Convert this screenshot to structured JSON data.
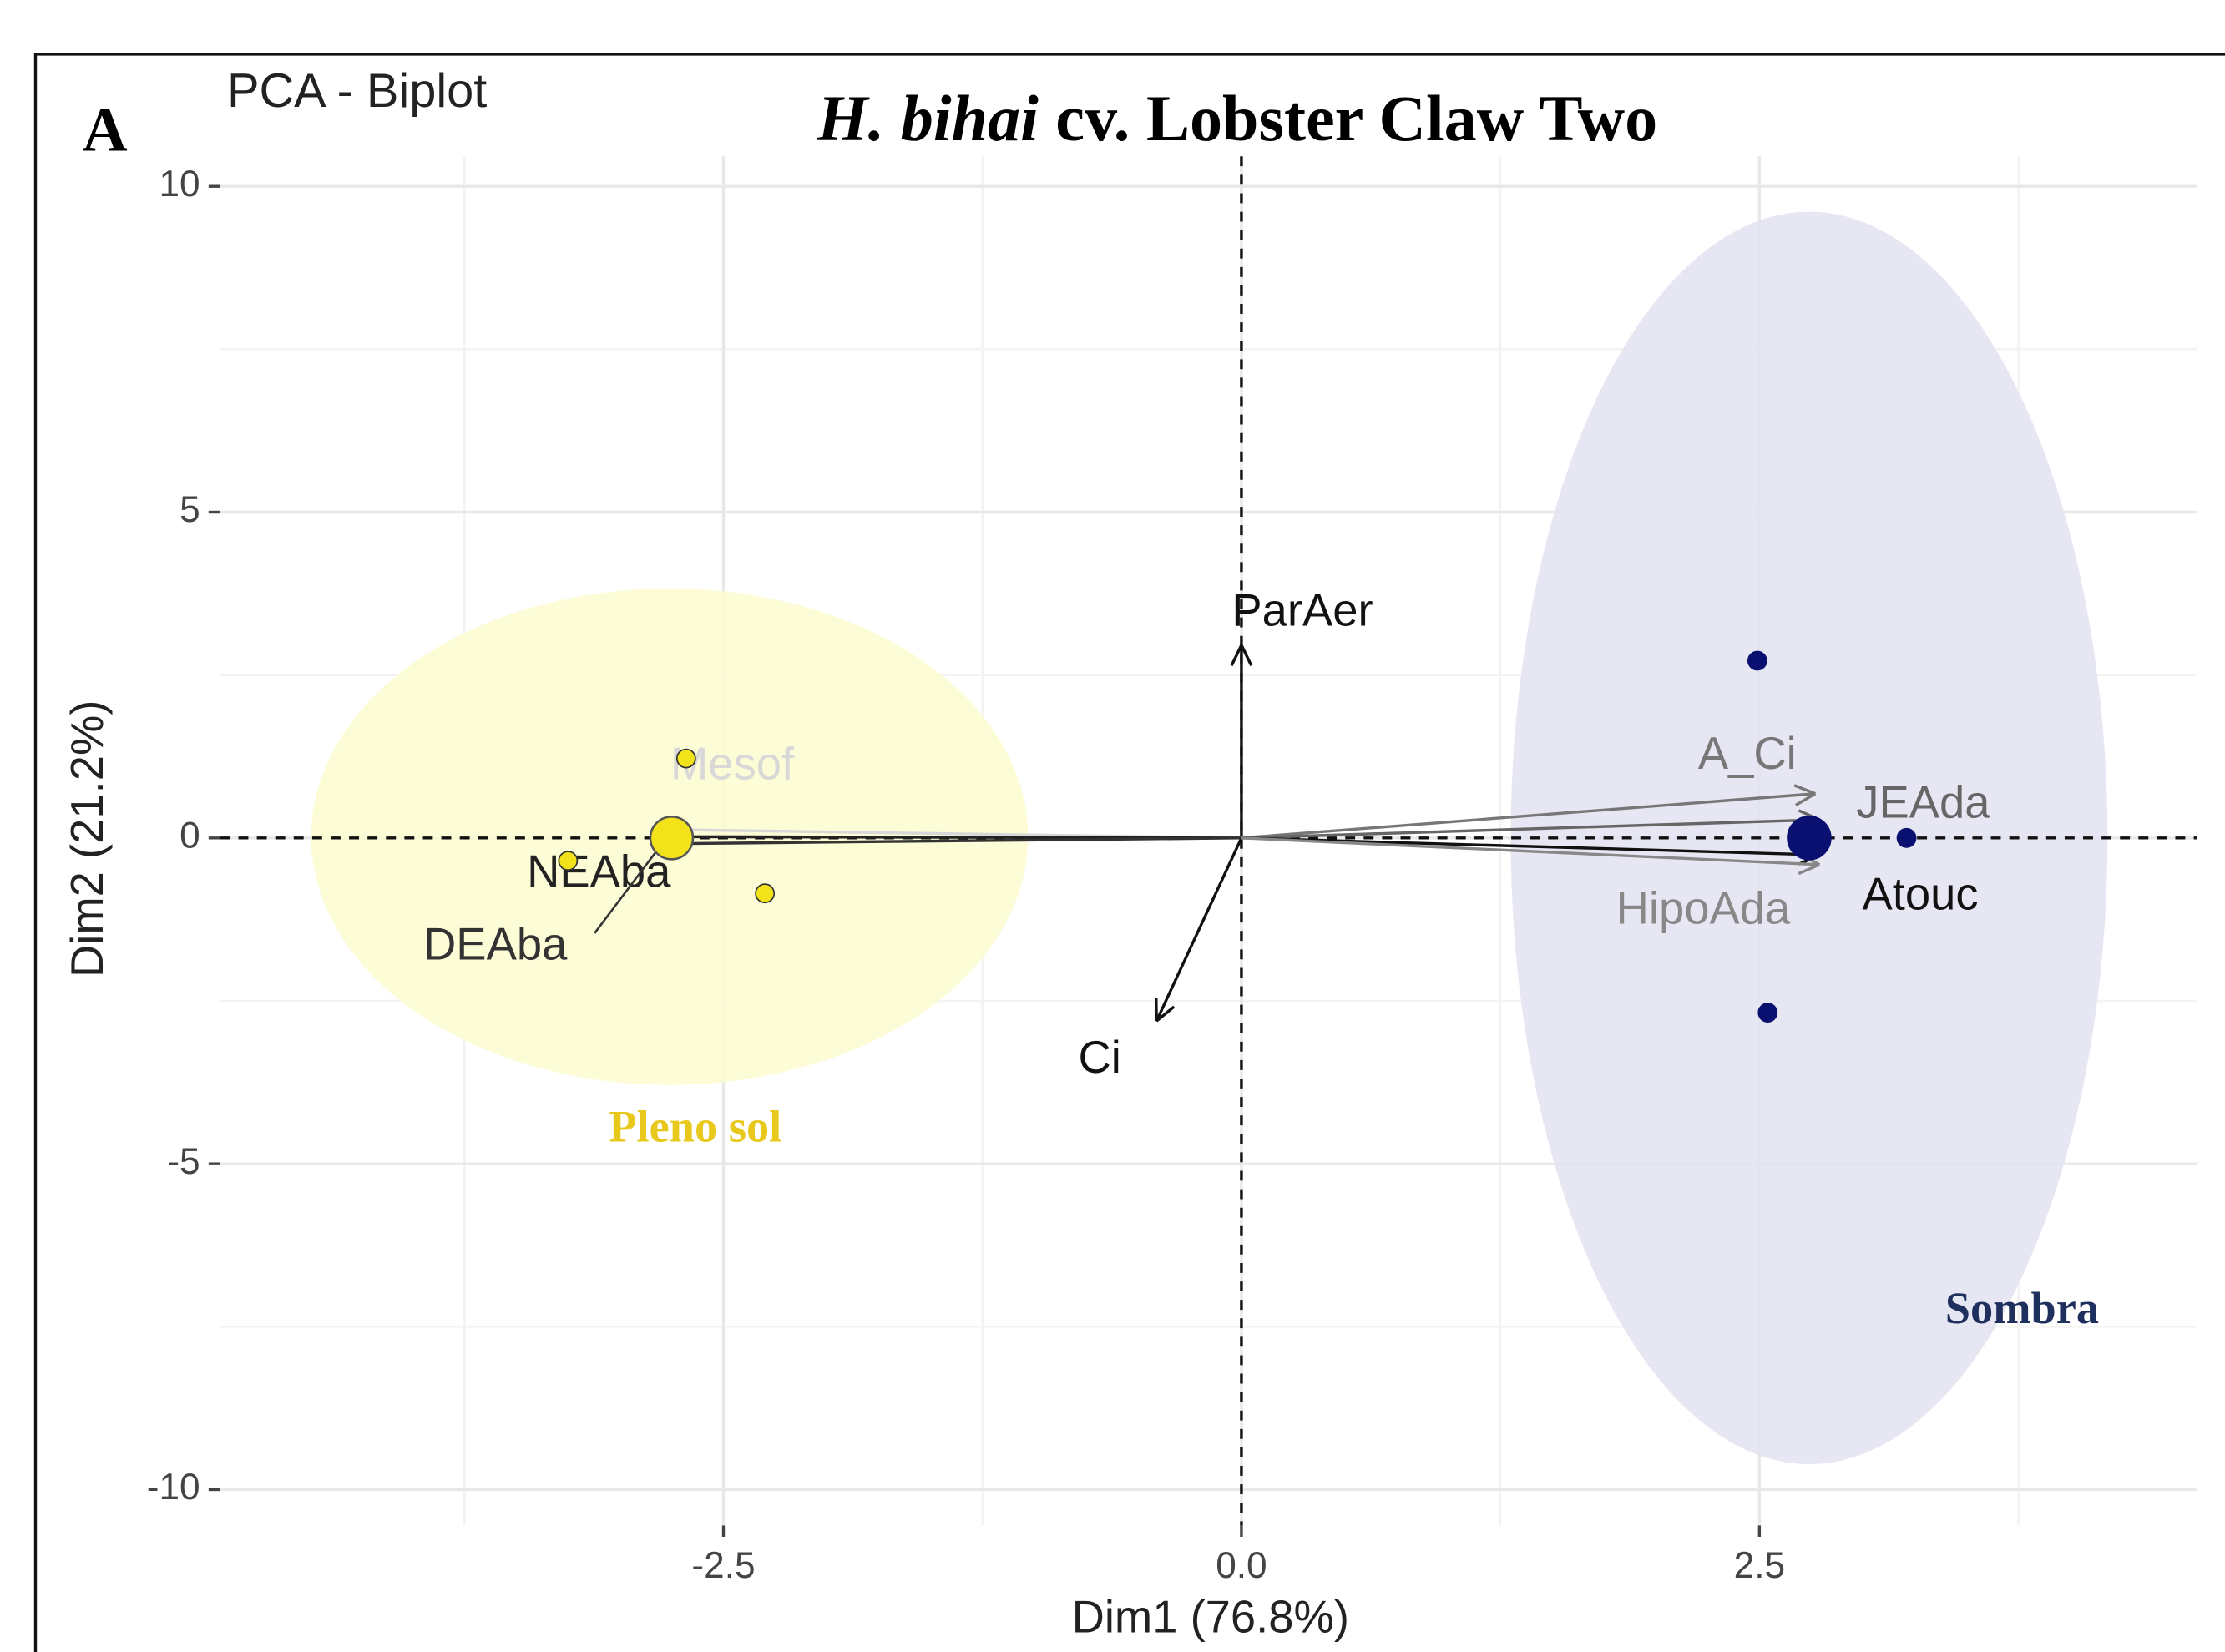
{
  "chart_data": {
    "type": "biplot",
    "panel_label": "A",
    "subtitle": "PCA - Biplot",
    "title_parts": [
      "H. bihai",
      "cv. Lobster Claw Two"
    ],
    "xlabel": "Dim1 (76.8%)",
    "ylabel": "Dim2 (21.2%)",
    "xlim": [
      -4.93,
      4.61
    ],
    "ylim": [
      -10.55,
      10.46
    ],
    "xticks": [
      -2.5,
      {
        "value": 0,
        "label": "0.0"
      },
      2.5
    ],
    "yticks": [
      10,
      5,
      0,
      -5,
      -10
    ],
    "minor_xticks": [
      -3.75,
      -1.25,
      1.25,
      3.75
    ],
    "minor_yticks": [
      7.5,
      2.5,
      -2.5,
      -7.5
    ],
    "grid": true,
    "series": [
      {
        "name": "Pleno sol",
        "color": "#f2e21a",
        "label_color": "#e8c81a",
        "ellipse_color": "#fbfbd0",
        "x": [
          -2.68,
          -3.25,
          -2.3
        ],
        "y": [
          1.22,
          -0.35,
          -0.85
        ],
        "centroid": [
          -2.75,
          0
        ],
        "ellipse": {
          "cx": -2.76,
          "cy": 0.02,
          "rx": 1.73,
          "ry": 3.81
        }
      },
      {
        "name": "Sombra",
        "color": "#0a1070",
        "label_color": "#1f2f5e",
        "ellipse_color": "#e2e3f1",
        "x": [
          2.49,
          3.21,
          2.54
        ],
        "y": [
          2.72,
          0,
          -2.68
        ],
        "centroid": [
          2.74,
          0
        ],
        "ellipse": {
          "cx": 2.74,
          "cy": 0,
          "rx": 1.44,
          "ry": 9.61
        }
      }
    ],
    "variables": [
      {
        "name": "ParAer",
        "x": 0,
        "y": 2.96,
        "color": "#111111"
      },
      {
        "name": "Ci",
        "x": -0.41,
        "y": -2.81,
        "color": "#111111"
      },
      {
        "name": "A_Ci",
        "x": 2.77,
        "y": 0.68,
        "color": "#777777"
      },
      {
        "name": "JEAda",
        "x": 2.79,
        "y": 0.28,
        "color": "#666666"
      },
      {
        "name": "Atouc",
        "x": 2.79,
        "y": -0.26,
        "color": "#111111"
      },
      {
        "name": "HipoAda",
        "x": 2.79,
        "y": -0.41,
        "color": "#888888"
      },
      {
        "name": "Mesof",
        "x": -2.8,
        "y": 0.13,
        "color": "#d8d8d8"
      },
      {
        "name": "NEAba",
        "x": -2.8,
        "y": 0.02,
        "color": "#222222"
      },
      {
        "name": "DEAba",
        "x": -2.8,
        "y": -0.09,
        "color": "#333333"
      }
    ]
  }
}
